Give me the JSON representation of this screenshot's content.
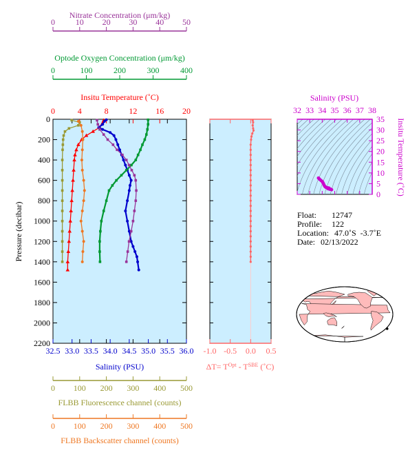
{
  "colors": {
    "nitrate": "#993399",
    "oxygen": "#009933",
    "temperature": "#ff0000",
    "salinity": "#0000cc",
    "fluorescence": "#999933",
    "backscatter": "#ee7722",
    "delta_t": "#ff6666",
    "ts_salinity": "#cc00cc",
    "ts_temperature": "#cc00cc",
    "panel_bg": "#cceeff",
    "map_land": "#ffbbbb"
  },
  "chart_data": [
    {
      "type": "line",
      "name": "profile",
      "ylabel": "Pressure (decibar)",
      "ylim": [
        2200,
        0
      ],
      "yticks": [
        0,
        200,
        400,
        600,
        800,
        1000,
        1200,
        1400,
        1600,
        1800,
        2000,
        2200
      ],
      "grid": false,
      "axes": {
        "nitrate": {
          "label": "Nitrate Concentration (μm/kg)",
          "range": [
            0,
            50
          ],
          "ticks": [
            0,
            10,
            20,
            30,
            40,
            50
          ]
        },
        "oxygen": {
          "label": "Optode Oxygen Concentration (μm/kg)",
          "range": [
            0,
            400
          ],
          "ticks": [
            0,
            100,
            200,
            300,
            400
          ]
        },
        "temperature": {
          "label": "Insitu Temperature (˚C)",
          "range": [
            0,
            20
          ],
          "ticks": [
            0,
            4,
            8,
            12,
            16,
            20
          ]
        },
        "salinity": {
          "label": "Salinity (PSU)",
          "range": [
            32.5,
            36.0
          ],
          "ticks": [
            "32.5",
            "33.0",
            "33.5",
            "34.0",
            "34.5",
            "35.0",
            "35.5",
            "36.0"
          ]
        },
        "fluorescence": {
          "label": "FLBB Fluorescence channel (counts)",
          "range": [
            0,
            500
          ],
          "ticks": [
            0,
            100,
            200,
            300,
            400,
            500
          ]
        },
        "backscatter": {
          "label": "FLBB Backscatter channel (counts)",
          "range": [
            0,
            500
          ],
          "ticks": [
            0,
            100,
            200,
            300,
            400,
            500
          ]
        }
      },
      "series": [
        {
          "key": "temperature",
          "marker": "triangle",
          "points": [
            [
              7.6,
              10
            ],
            [
              7.4,
              40
            ],
            [
              7.0,
              80
            ],
            [
              6.0,
              120
            ],
            [
              5.0,
              160
            ],
            [
              4.3,
              200
            ],
            [
              3.8,
              250
            ],
            [
              3.5,
              300
            ],
            [
              3.3,
              350
            ],
            [
              3.2,
              400
            ],
            [
              3.1,
              500
            ],
            [
              3.0,
              600
            ],
            [
              2.9,
              700
            ],
            [
              2.8,
              800
            ],
            [
              2.7,
              900
            ],
            [
              2.6,
              1000
            ],
            [
              2.5,
              1100
            ],
            [
              2.4,
              1200
            ],
            [
              2.3,
              1300
            ],
            [
              2.2,
              1400
            ],
            [
              2.2,
              1480
            ]
          ]
        },
        {
          "key": "salinity",
          "marker": "circle",
          "points": [
            [
              33.9,
              5
            ],
            [
              33.85,
              20
            ],
            [
              33.8,
              50
            ],
            [
              33.7,
              80
            ],
            [
              33.8,
              100
            ],
            [
              34.0,
              130
            ],
            [
              34.1,
              160
            ],
            [
              34.15,
              200
            ],
            [
              34.2,
              250
            ],
            [
              34.25,
              300
            ],
            [
              34.3,
              350
            ],
            [
              34.35,
              400
            ],
            [
              34.4,
              450
            ],
            [
              34.45,
              500
            ],
            [
              34.5,
              550
            ],
            [
              34.55,
              600
            ],
            [
              34.52,
              650
            ],
            [
              34.5,
              700
            ],
            [
              34.45,
              800
            ],
            [
              34.4,
              900
            ],
            [
              34.45,
              1000
            ],
            [
              34.5,
              1100
            ],
            [
              34.55,
              1200
            ],
            [
              34.6,
              1250
            ],
            [
              34.65,
              1300
            ],
            [
              34.7,
              1350
            ],
            [
              34.72,
              1400
            ],
            [
              34.75,
              1480
            ]
          ]
        },
        {
          "key": "oxygen",
          "marker": "square",
          "points": [
            [
              285,
              5
            ],
            [
              285,
              50
            ],
            [
              283,
              100
            ],
            [
              280,
              150
            ],
            [
              275,
              200
            ],
            [
              268,
              250
            ],
            [
              262,
              300
            ],
            [
              255,
              350
            ],
            [
              248,
              400
            ],
            [
              235,
              450
            ],
            [
              220,
              500
            ],
            [
              205,
              550
            ],
            [
              190,
              600
            ],
            [
              178,
              650
            ],
            [
              168,
              700
            ],
            [
              160,
              800
            ],
            [
              152,
              900
            ],
            [
              145,
              1000
            ],
            [
              142,
              1100
            ],
            [
              140,
              1200
            ],
            [
              140,
              1300
            ],
            [
              141,
              1400
            ]
          ]
        },
        {
          "key": "nitrate",
          "marker": "square",
          "points": [
            [
              16.5,
              10
            ],
            [
              16.8,
              50
            ],
            [
              17.5,
              100
            ],
            [
              19.0,
              150
            ],
            [
              20.5,
              200
            ],
            [
              22.5,
              250
            ],
            [
              24.0,
              300
            ],
            [
              26.0,
              350
            ],
            [
              27.5,
              400
            ],
            [
              28.5,
              450
            ],
            [
              29.5,
              500
            ],
            [
              30.5,
              550
            ],
            [
              31.0,
              600
            ],
            [
              31.2,
              700
            ],
            [
              31.0,
              800
            ],
            [
              30.5,
              900
            ],
            [
              30.0,
              1000
            ],
            [
              29.3,
              1100
            ],
            [
              28.5,
              1200
            ],
            [
              28.0,
              1300
            ],
            [
              27.5,
              1400
            ]
          ]
        },
        {
          "key": "fluorescence",
          "marker": "square",
          "points": [
            [
              70,
              10
            ],
            [
              100,
              30
            ],
            [
              95,
              60
            ],
            [
              60,
              90
            ],
            [
              45,
              120
            ],
            [
              40,
              160
            ],
            [
              38,
              200
            ],
            [
              37,
              250
            ],
            [
              36,
              300
            ],
            [
              35,
              400
            ],
            [
              35,
              500
            ],
            [
              35,
              600
            ],
            [
              35,
              700
            ],
            [
              35,
              800
            ],
            [
              35,
              900
            ],
            [
              35,
              1000
            ],
            [
              35,
              1100
            ],
            [
              35,
              1200
            ],
            [
              35,
              1300
            ],
            [
              35,
              1400
            ]
          ]
        },
        {
          "key": "backscatter",
          "marker": "circle",
          "points": [
            [
              95,
              20
            ],
            [
              105,
              60
            ],
            [
              110,
              120
            ],
            [
              112,
              200
            ],
            [
              110,
              300
            ],
            [
              108,
              400
            ],
            [
              110,
              500
            ],
            [
              115,
              600
            ],
            [
              118,
              700
            ],
            [
              115,
              800
            ],
            [
              110,
              900
            ],
            [
              105,
              1000
            ],
            [
              110,
              1100
            ],
            [
              115,
              1200
            ],
            [
              112,
              1300
            ],
            [
              110,
              1400
            ]
          ]
        }
      ]
    },
    {
      "type": "line",
      "name": "delta_t",
      "xlabel_parts": [
        "ΔT= T",
        "Opt",
        " - T",
        "SBE",
        " (˚C)"
      ],
      "xlim": [
        -1.0,
        0.5
      ],
      "xticks": [
        "-1.0",
        "-0.5",
        "0.0",
        "0.5"
      ],
      "ylim": [
        2200,
        0
      ],
      "points": [
        [
          0.05,
          10
        ],
        [
          0.06,
          30
        ],
        [
          0.05,
          60
        ],
        [
          0.06,
          90
        ],
        [
          0.07,
          110
        ],
        [
          0.04,
          140
        ],
        [
          0.02,
          170
        ],
        [
          0.01,
          200
        ],
        [
          0.0,
          250
        ],
        [
          0.0,
          300
        ],
        [
          0.0,
          350
        ],
        [
          0.0,
          400
        ],
        [
          0.0,
          450
        ],
        [
          0.0,
          500
        ],
        [
          0.0,
          550
        ],
        [
          0.0,
          600
        ],
        [
          0.0,
          650
        ],
        [
          0.0,
          700
        ],
        [
          0.0,
          750
        ],
        [
          0.0,
          800
        ],
        [
          0.0,
          850
        ],
        [
          0.0,
          900
        ],
        [
          0.0,
          950
        ],
        [
          0.0,
          1000
        ],
        [
          0.0,
          1050
        ],
        [
          0.0,
          1100
        ],
        [
          0.0,
          1150
        ],
        [
          0.0,
          1200
        ],
        [
          0.0,
          1250
        ],
        [
          0.0,
          1300
        ],
        [
          0.0,
          1350
        ],
        [
          0.0,
          1400
        ]
      ]
    },
    {
      "type": "scatter",
      "name": "ts_diagram",
      "title": "Salinity (PSU)",
      "ylabel": "Insitu Temperature (˚C)",
      "xlim": [
        32,
        38
      ],
      "ylim": [
        0,
        35
      ],
      "xticks": [
        32,
        33,
        34,
        35,
        36,
        37,
        38
      ],
      "yticks": [
        0,
        5,
        10,
        15,
        20,
        25,
        30,
        35
      ],
      "points": [
        [
          33.7,
          7.6
        ],
        [
          33.75,
          7.3
        ],
        [
          33.8,
          7.0
        ],
        [
          33.9,
          6.5
        ],
        [
          34.0,
          6.0
        ],
        [
          34.05,
          5.5
        ],
        [
          34.1,
          5.0
        ],
        [
          34.15,
          4.3
        ],
        [
          34.2,
          3.8
        ],
        [
          34.25,
          3.5
        ],
        [
          34.3,
          3.3
        ],
        [
          34.4,
          3.1
        ],
        [
          34.5,
          3.0
        ],
        [
          34.55,
          2.9
        ],
        [
          34.5,
          2.8
        ],
        [
          34.45,
          2.7
        ],
        [
          34.5,
          2.6
        ],
        [
          34.6,
          2.4
        ],
        [
          34.7,
          2.3
        ],
        [
          34.75,
          2.2
        ]
      ]
    }
  ],
  "info": {
    "float_label": "Float:",
    "float_value": "12747",
    "profile_label": "Profile:",
    "profile_value": "122",
    "location_label": "Location:",
    "location_value": "47.0˚S  -3.7˚E",
    "date_label": "Date:",
    "date_value": "02/13/2022"
  },
  "map": {
    "float_lon": -3.7,
    "float_lat": -47.0
  }
}
